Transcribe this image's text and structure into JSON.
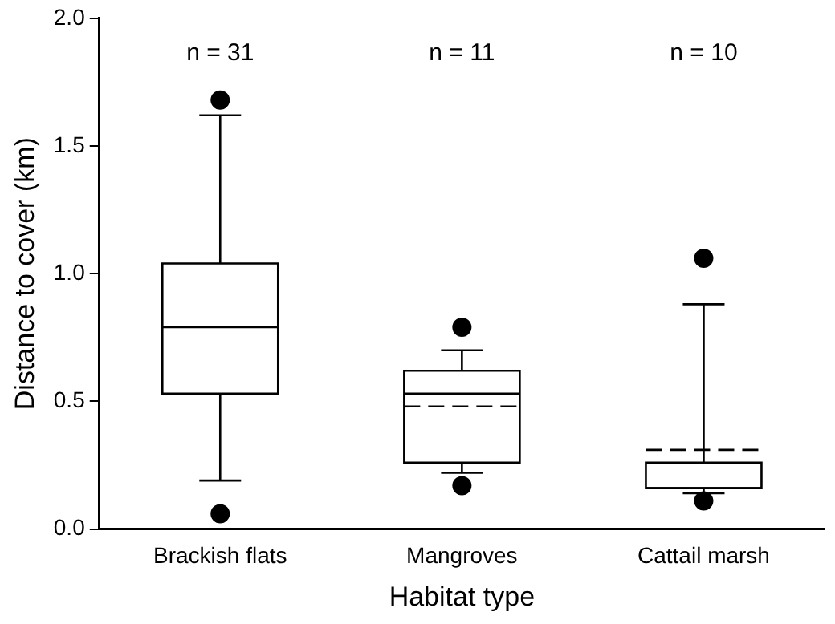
{
  "chart_data": {
    "type": "box",
    "xlabel": "Habitat type",
    "ylabel": "Distance to cover (km)",
    "categories": [
      "Brackish flats",
      "Mangroves",
      "Cattail marsh"
    ],
    "boxes": [
      {
        "low": 0.19,
        "q1": 0.53,
        "median": 0.79,
        "q3": 1.04,
        "high": 1.62,
        "outliers": [
          1.68,
          0.06
        ]
      },
      {
        "low": 0.22,
        "q1": 0.26,
        "median": 0.53,
        "q3": 0.62,
        "high": 0.7,
        "mean": 0.48,
        "outliers": [
          0.79,
          0.17
        ]
      },
      {
        "low": 0.14,
        "q1": 0.16,
        "median": 0.16,
        "q3": 0.26,
        "high": 0.88,
        "mean": 0.31,
        "outliers": [
          1.06,
          0.11
        ]
      }
    ],
    "color": "#000000",
    "ylim": [
      0,
      2
    ],
    "yticks": [
      {
        "value": 0,
        "label": "0.0"
      },
      {
        "value": 0.5,
        "label": "0.5"
      },
      {
        "value": 1,
        "label": "1.0"
      },
      {
        "value": 1.5,
        "label": "1.5"
      },
      {
        "value": 2,
        "label": "2.0"
      }
    ],
    "grid": false,
    "legend": false,
    "marker": "circle",
    "annotations": [
      "n = 31",
      "n = 11",
      "n = 10"
    ]
  }
}
